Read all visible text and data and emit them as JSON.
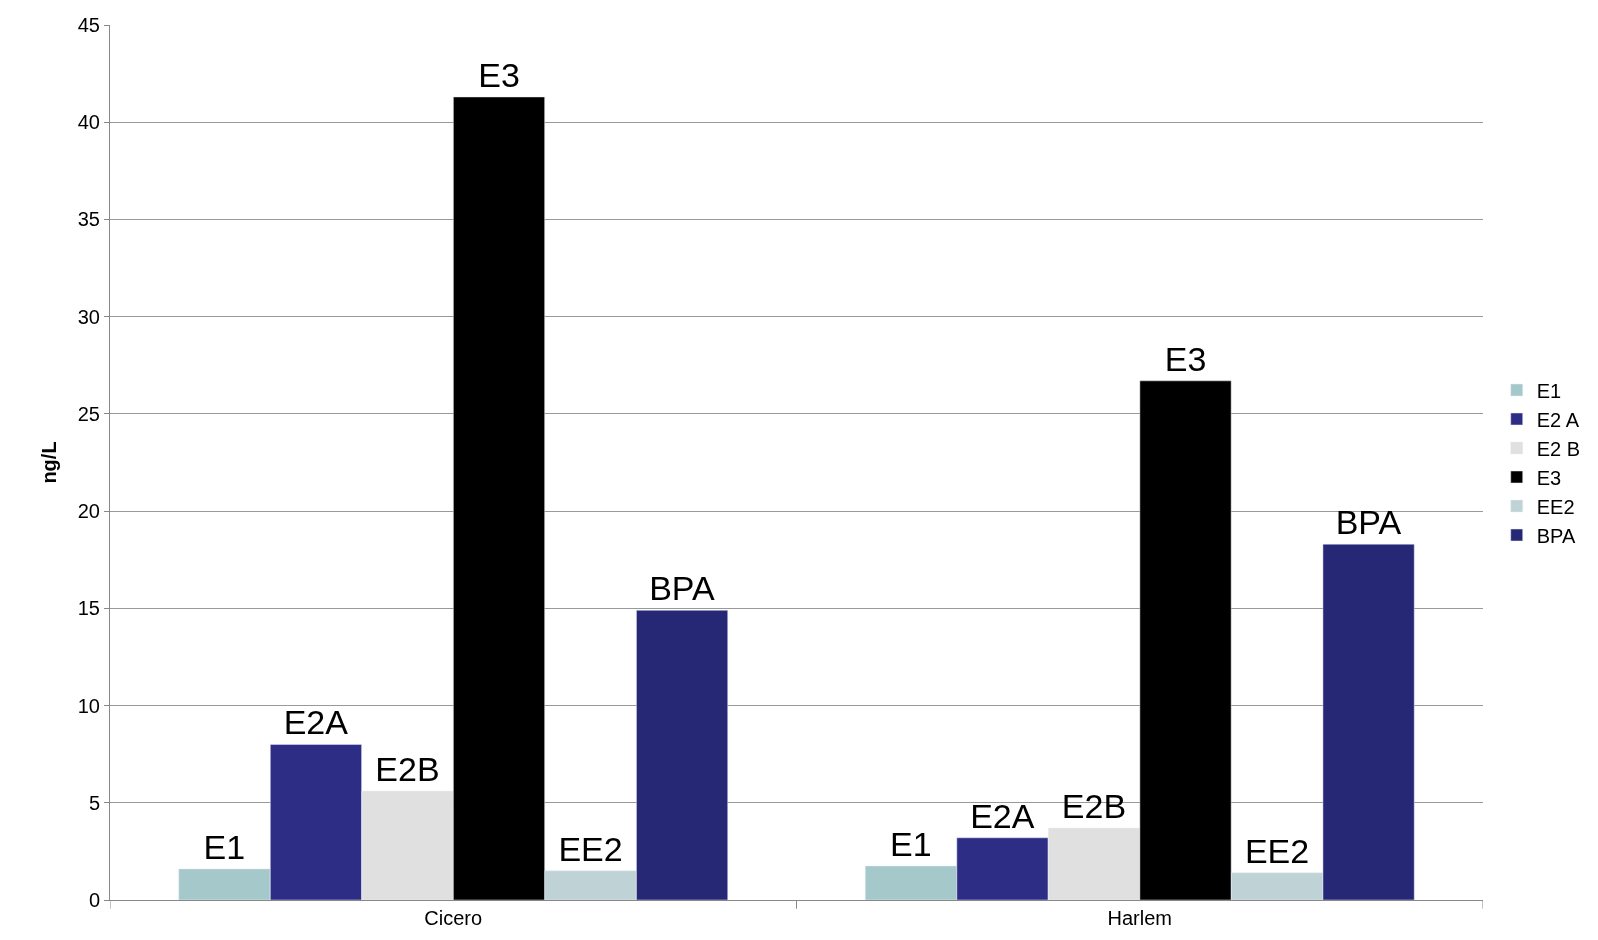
{
  "chart_data": {
    "type": "bar",
    "ylabel": "ng/L",
    "categories": [
      "Cicero",
      "Harlem"
    ],
    "series": [
      {
        "name": "E1",
        "color": "#a5c8ca",
        "values": [
          1.6,
          1.75
        ],
        "value_labels": [
          "E1",
          "E1"
        ]
      },
      {
        "name": "E2 A",
        "color": "#2e2d85",
        "values": [
          8.0,
          3.2
        ],
        "value_labels": [
          "E2A",
          "E2A"
        ]
      },
      {
        "name": "E2 B",
        "color": "#e0e0e0",
        "values": [
          5.6,
          3.7
        ],
        "value_labels": [
          "E2B",
          "E2B"
        ]
      },
      {
        "name": "E3",
        "color": "#000000",
        "values": [
          41.3,
          26.7
        ],
        "value_labels": [
          "E3",
          "E3"
        ]
      },
      {
        "name": "EE2",
        "color": "#bfd2d5",
        "values": [
          1.5,
          1.4
        ],
        "value_labels": [
          "EE2",
          "EE2"
        ]
      },
      {
        "name": "BPA",
        "color": "#272875",
        "values": [
          14.9,
          18.3
        ],
        "value_labels": [
          "BPA",
          "BPA"
        ]
      }
    ],
    "ylim": [
      0,
      45
    ],
    "yticks": [
      0,
      5,
      10,
      15,
      20,
      25,
      30,
      35,
      40,
      45
    ],
    "grid": "y",
    "legend": "right"
  }
}
